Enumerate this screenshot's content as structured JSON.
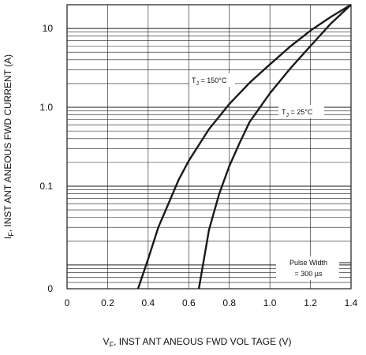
{
  "chart_data": {
    "type": "line",
    "xlabel": {
      "main": "V",
      "sub": "F",
      "rest": ", INST ANT ANEOUS   FWD  VOL TAGE  (V)"
    },
    "ylabel": {
      "main": "I",
      "sub": "F",
      "rest": ", INST ANT ANEOUS   FWD  CURRENT   (A)"
    },
    "xlim": [
      0,
      1.4
    ],
    "ylim": [
      0.005,
      20
    ],
    "yscale": "log",
    "grid": true,
    "x_ticks": [
      {
        "value": 0,
        "label": "0"
      },
      {
        "value": 0.2,
        "label": "0.2"
      },
      {
        "value": 0.4,
        "label": "0.4"
      },
      {
        "value": 0.6,
        "label": "0.6"
      },
      {
        "value": 0.8,
        "label": "0.8"
      },
      {
        "value": 1.0,
        "label": "1.0"
      },
      {
        "value": 1.2,
        "label": "1.2"
      },
      {
        "value": 1.4,
        "label": "1.4"
      }
    ],
    "y_ticks": [
      {
        "value": 0.005,
        "label": "0"
      },
      {
        "value": 0.1,
        "label": "0.1"
      },
      {
        "value": 1.0,
        "label": "1.0"
      },
      {
        "value": 10,
        "label": "10"
      }
    ],
    "series": [
      {
        "name": "T J = 150°C",
        "points": [
          [
            0.35,
            0.005
          ],
          [
            0.4,
            0.012
          ],
          [
            0.45,
            0.03
          ],
          [
            0.5,
            0.06
          ],
          [
            0.55,
            0.12
          ],
          [
            0.6,
            0.21
          ],
          [
            0.7,
            0.53
          ],
          [
            0.8,
            1.1
          ],
          [
            0.9,
            2.05
          ],
          [
            1.0,
            3.5
          ],
          [
            1.1,
            5.9
          ],
          [
            1.2,
            9.4
          ],
          [
            1.3,
            14.0
          ],
          [
            1.4,
            20.0
          ]
        ]
      },
      {
        "name": "T J = 25°C",
        "points": [
          [
            0.65,
            0.005
          ],
          [
            0.7,
            0.028
          ],
          [
            0.75,
            0.08
          ],
          [
            0.8,
            0.18
          ],
          [
            0.85,
            0.35
          ],
          [
            0.9,
            0.65
          ],
          [
            1.0,
            1.5
          ],
          [
            1.1,
            3.1
          ],
          [
            1.2,
            6.0
          ],
          [
            1.3,
            11.5
          ],
          [
            1.4,
            20.0
          ]
        ]
      }
    ],
    "annotations": [
      {
        "main": "T",
        "sub": "J",
        "rest": " = 150°C"
      },
      {
        "main": "T",
        "sub": "J",
        "rest": " = 25°C"
      },
      {
        "line1": "Pulse  Width",
        "line2": "= 300  µs"
      }
    ],
    "colors": {
      "line": "#1a1a1a",
      "grid": "#1a1a1a",
      "background": "#ffffff"
    }
  }
}
